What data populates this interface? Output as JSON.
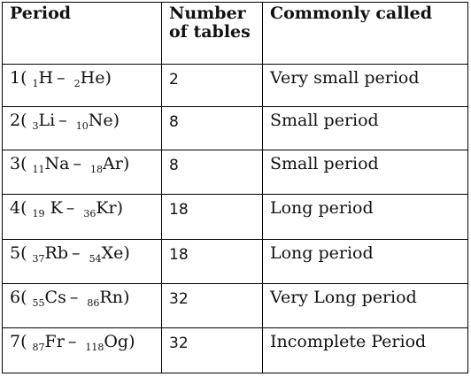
{
  "headers": {
    "period": "Period",
    "tables": "Number of tables",
    "called": "Commonly called"
  },
  "rows": [
    {
      "period": "1",
      "from_z": "1",
      "from_sym": "H",
      "to_z": "2",
      "to_sym": "He",
      "tables": "2",
      "called": "Very small period"
    },
    {
      "period": "2",
      "from_z": "3",
      "from_sym": "Li",
      "to_z": "10",
      "to_sym": "Ne",
      "tables": "8",
      "called": "Small period"
    },
    {
      "period": "3",
      "from_z": "11",
      "from_sym": "Na",
      "to_z": "18",
      "to_sym": "Ar",
      "tables": "8",
      "called": "Small period"
    },
    {
      "period": "4",
      "from_z": "19",
      "from_sym": "K",
      "to_z": "36",
      "to_sym": "Kr",
      "tables": "18",
      "called": "Long period"
    },
    {
      "period": "5",
      "from_z": "37",
      "from_sym": "Rb",
      "to_z": "54",
      "to_sym": "Xe",
      "tables": "18",
      "called": "Long period"
    },
    {
      "period": "6",
      "from_z": "55",
      "from_sym": "Cs",
      "to_z": "86",
      "to_sym": "Rn",
      "tables": "32",
      "called": "Very Long period"
    },
    {
      "period": "7",
      "from_z": "87",
      "from_sym": "Fr",
      "to_z": "118",
      "to_sym": "Og",
      "tables": "32",
      "called": "Incomplete Period"
    }
  ]
}
